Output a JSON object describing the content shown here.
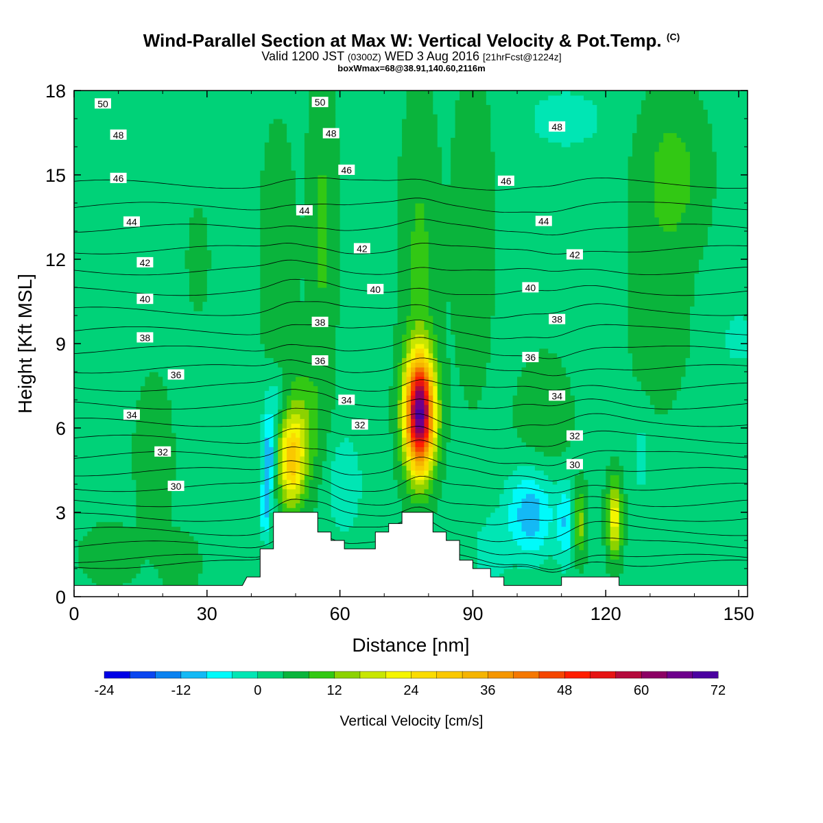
{
  "header": {
    "title": "Wind-Parallel Section at Max W: Vertical Velocity & Pot.Temp.",
    "copyright": "(C)",
    "valid_prefix": "Valid 1200 JST",
    "valid_utc": "(0300Z)",
    "valid_date": "WED 3 Aug 2016",
    "forecast": "[21hrFcst@1224z]",
    "boxwmax": "boxWmax=68@38.91,140.60,2116m"
  },
  "colorbar": {
    "label": "Vertical Velocity [cm/s]",
    "min": -24,
    "max": 72,
    "step": 4,
    "tick_values": [
      -24,
      -12,
      0,
      12,
      24,
      36,
      48,
      60,
      72
    ],
    "tick_labels": [
      "-24",
      "-12",
      "0",
      "12",
      "24",
      "36",
      "48",
      "60",
      "72"
    ],
    "colors": [
      "#0000e6",
      "#0a46f0",
      "#0a82f0",
      "#14b9f5",
      "#00fafa",
      "#00e6b4",
      "#00d278",
      "#0ab43c",
      "#32c814",
      "#8cd200",
      "#c8e600",
      "#f5f500",
      "#fadc00",
      "#fac800",
      "#f5b400",
      "#f59600",
      "#f57800",
      "#f54600",
      "#ff1e00",
      "#e61414",
      "#b40a3c",
      "#8c0064",
      "#6e008c",
      "#4b00a0"
    ]
  },
  "chart_data": {
    "type": "heatmap",
    "title": "Wind-Parallel Section at Max W: Vertical Velocity & Pot.Temp.",
    "xlabel": "Distance [nm]",
    "ylabel": "Height [Kft MSL]",
    "xlim": [
      0,
      152
    ],
    "ylim": [
      0,
      18
    ],
    "x_ticks": [
      0,
      30,
      60,
      90,
      120,
      150
    ],
    "x_tick_labels": [
      "0",
      "30",
      "60",
      "90",
      "120",
      "150"
    ],
    "y_ticks": [
      0,
      3,
      6,
      9,
      12,
      15,
      18
    ],
    "y_tick_labels": [
      "0",
      "3",
      "6",
      "9",
      "12",
      "15",
      "18"
    ],
    "background_w": 3,
    "w_features": [
      {
        "x": 78,
        "y": 6.5,
        "sx": 3.2,
        "sy": 2.0,
        "peak": 65
      },
      {
        "x": 49,
        "y": 4.8,
        "sx": 2.8,
        "sy": 1.6,
        "peak": 22
      },
      {
        "x": 51,
        "y": 6.0,
        "sx": 5.0,
        "sy": 2.2,
        "peak": 9
      },
      {
        "x": 56,
        "y": 13.0,
        "sx": 3.0,
        "sy": 5.0,
        "peak": 6
      },
      {
        "x": 46,
        "y": 12.0,
        "sx": 3.5,
        "sy": 4.0,
        "peak": 5
      },
      {
        "x": 78,
        "y": 12.0,
        "sx": 4.0,
        "sy": 5.0,
        "peak": 6
      },
      {
        "x": 90,
        "y": 13.0,
        "sx": 4.0,
        "sy": 5.0,
        "peak": 5
      },
      {
        "x": 122,
        "y": 2.8,
        "sx": 1.6,
        "sy": 1.3,
        "peak": 20
      },
      {
        "x": 114,
        "y": 2.6,
        "sx": 1.5,
        "sy": 1.2,
        "peak": 12
      },
      {
        "x": 135,
        "y": 15.0,
        "sx": 7.0,
        "sy": 2.6,
        "peak": 7
      },
      {
        "x": 132,
        "y": 10.0,
        "sx": 6.0,
        "sy": 3.0,
        "peak": 4
      },
      {
        "x": 106,
        "y": 6.2,
        "sx": 6.0,
        "sy": 2.2,
        "peak": 4
      },
      {
        "x": 18,
        "y": 5.0,
        "sx": 4.0,
        "sy": 2.5,
        "peak": 4
      },
      {
        "x": 28,
        "y": 12.0,
        "sx": 2.0,
        "sy": 1.5,
        "peak": 5
      },
      {
        "x": 8,
        "y": 1.5,
        "sx": 6.0,
        "sy": 1.0,
        "peak": 4
      },
      {
        "x": 24,
        "y": 1.2,
        "sx": 4.0,
        "sy": 1.0,
        "peak": 4
      },
      {
        "x": 44,
        "y": 5.0,
        "sx": 1.5,
        "sy": 1.5,
        "peak": -16
      },
      {
        "x": 43,
        "y": 3.0,
        "sx": 1.0,
        "sy": 1.0,
        "peak": -12
      },
      {
        "x": 46,
        "y": 7.0,
        "sx": 3.0,
        "sy": 1.2,
        "peak": -7
      },
      {
        "x": 61,
        "y": 4.0,
        "sx": 4.0,
        "sy": 1.8,
        "peak": -7
      },
      {
        "x": 103,
        "y": 3.0,
        "sx": 5.5,
        "sy": 1.6,
        "peak": -14
      },
      {
        "x": 111,
        "y": 2.6,
        "sx": 2.0,
        "sy": 1.5,
        "peak": -10
      },
      {
        "x": 94,
        "y": 1.6,
        "sx": 4.0,
        "sy": 1.2,
        "peak": -6
      },
      {
        "x": 111,
        "y": 17.0,
        "sx": 8.0,
        "sy": 1.0,
        "peak": -7
      },
      {
        "x": 150,
        "y": 9.2,
        "sx": 3.0,
        "sy": 0.8,
        "peak": -7
      },
      {
        "x": 128,
        "y": 5.0,
        "sx": 2.0,
        "sy": 1.5,
        "peak": -5
      }
    ],
    "terrain_kft": [
      [
        0,
        0.4
      ],
      [
        38,
        0.4
      ],
      [
        39,
        0.7
      ],
      [
        42,
        0.7
      ],
      [
        42,
        1.7
      ],
      [
        45,
        1.7
      ],
      [
        45,
        3.0
      ],
      [
        55,
        3.0
      ],
      [
        55,
        2.3
      ],
      [
        58,
        2.3
      ],
      [
        58,
        2.0
      ],
      [
        61,
        2.0
      ],
      [
        61,
        1.7
      ],
      [
        68,
        1.7
      ],
      [
        68,
        2.3
      ],
      [
        71,
        2.3
      ],
      [
        71,
        2.6
      ],
      [
        74,
        2.6
      ],
      [
        74,
        3.0
      ],
      [
        81,
        3.0
      ],
      [
        81,
        2.3
      ],
      [
        84,
        2.3
      ],
      [
        84,
        2.0
      ],
      [
        87,
        2.0
      ],
      [
        87,
        1.3
      ],
      [
        90,
        1.3
      ],
      [
        90,
        1.0
      ],
      [
        94,
        1.0
      ],
      [
        94,
        0.7
      ],
      [
        97,
        0.7
      ],
      [
        97,
        0.4
      ],
      [
        110,
        0.4
      ],
      [
        110,
        0.7
      ],
      [
        123,
        0.7
      ],
      [
        123,
        0.4
      ],
      [
        152,
        0.4
      ]
    ],
    "theta_levels": [
      29,
      30,
      31,
      32,
      33,
      34,
      35,
      36,
      37,
      38,
      39,
      40,
      41,
      42,
      43,
      44,
      45,
      46,
      47,
      48,
      49,
      50,
      51
    ],
    "theta_labels": [
      {
        "value": "50",
        "x": 6.5,
        "y": 17.53
      },
      {
        "value": "48",
        "x": 10,
        "y": 16.42
      },
      {
        "value": "46",
        "x": 10,
        "y": 14.88
      },
      {
        "value": "44",
        "x": 13,
        "y": 13.33
      },
      {
        "value": "42",
        "x": 16,
        "y": 11.88
      },
      {
        "value": "40",
        "x": 16,
        "y": 10.58
      },
      {
        "value": "38",
        "x": 16,
        "y": 9.21
      },
      {
        "value": "36",
        "x": 23,
        "y": 7.89
      },
      {
        "value": "34",
        "x": 13,
        "y": 6.46
      },
      {
        "value": "32",
        "x": 20,
        "y": 5.15
      },
      {
        "value": "30",
        "x": 23,
        "y": 3.93
      },
      {
        "value": "50",
        "x": 55.5,
        "y": 17.58
      },
      {
        "value": "48",
        "x": 58,
        "y": 16.47
      },
      {
        "value": "46",
        "x": 61.5,
        "y": 15.17
      },
      {
        "value": "44",
        "x": 52,
        "y": 13.73
      },
      {
        "value": "42",
        "x": 65,
        "y": 12.38
      },
      {
        "value": "40",
        "x": 68,
        "y": 10.93
      },
      {
        "value": "38",
        "x": 55.5,
        "y": 9.76
      },
      {
        "value": "36",
        "x": 55.5,
        "y": 8.39
      },
      {
        "value": "34",
        "x": 61.5,
        "y": 6.99
      },
      {
        "value": "32",
        "x": 64.5,
        "y": 6.11
      },
      {
        "value": "48",
        "x": 109,
        "y": 16.71
      },
      {
        "value": "46",
        "x": 97.5,
        "y": 14.78
      },
      {
        "value": "44",
        "x": 106,
        "y": 13.35
      },
      {
        "value": "42",
        "x": 113,
        "y": 12.16
      },
      {
        "value": "40",
        "x": 103,
        "y": 10.99
      },
      {
        "value": "38",
        "x": 109,
        "y": 9.86
      },
      {
        "value": "36",
        "x": 103,
        "y": 8.51
      },
      {
        "value": "34",
        "x": 109,
        "y": 7.14
      },
      {
        "value": "32",
        "x": 113,
        "y": 5.72
      },
      {
        "value": "30",
        "x": 113,
        "y": 4.7
      }
    ]
  }
}
